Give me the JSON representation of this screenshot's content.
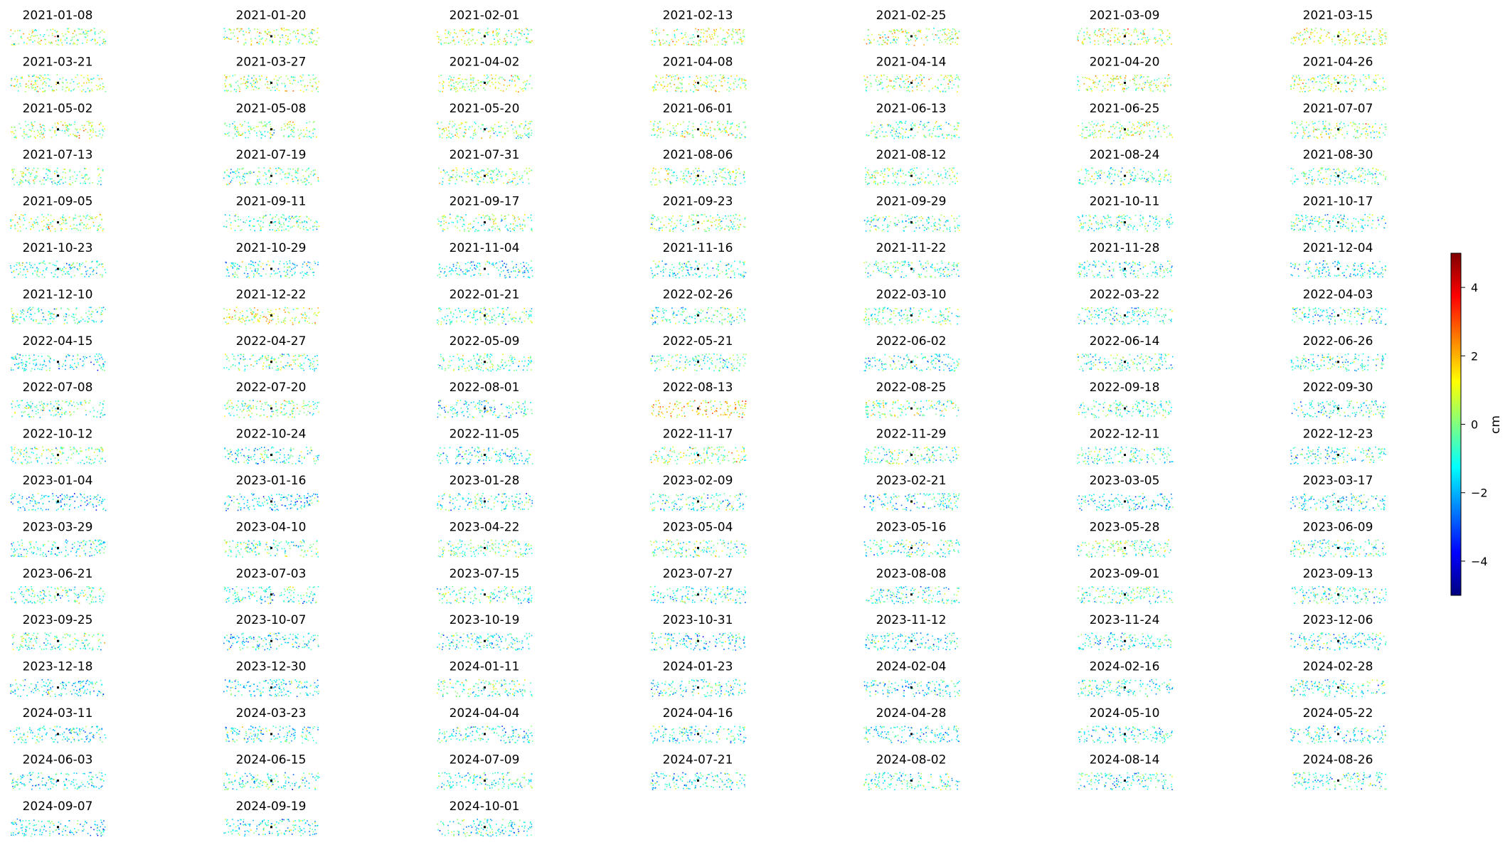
{
  "chart_data": {
    "type": "scatter",
    "description_of_panels": "small-multiples displacement maps, one per acquisition date",
    "dates": [
      "2021-01-08",
      "2021-01-20",
      "2021-02-01",
      "2021-02-13",
      "2021-02-25",
      "2021-03-09",
      "2021-03-15",
      "2021-03-21",
      "2021-03-27",
      "2021-04-02",
      "2021-04-08",
      "2021-04-14",
      "2021-04-20",
      "2021-04-26",
      "2021-05-02",
      "2021-05-08",
      "2021-05-20",
      "2021-06-01",
      "2021-06-13",
      "2021-06-25",
      "2021-07-07",
      "2021-07-13",
      "2021-07-19",
      "2021-07-31",
      "2021-08-06",
      "2021-08-12",
      "2021-08-24",
      "2021-08-30",
      "2021-09-05",
      "2021-09-11",
      "2021-09-17",
      "2021-09-23",
      "2021-09-29",
      "2021-10-11",
      "2021-10-17",
      "2021-10-23",
      "2021-10-29",
      "2021-11-04",
      "2021-11-16",
      "2021-11-22",
      "2021-11-28",
      "2021-12-04",
      "2021-12-10",
      "2021-12-22",
      "2022-01-21",
      "2022-02-26",
      "2022-03-10",
      "2022-03-22",
      "2022-04-03",
      "2022-04-15",
      "2022-04-27",
      "2022-05-09",
      "2022-05-21",
      "2022-06-02",
      "2022-06-14",
      "2022-06-26",
      "2022-07-08",
      "2022-07-20",
      "2022-08-01",
      "2022-08-13",
      "2022-08-25",
      "2022-09-18",
      "2022-09-30",
      "2022-10-12",
      "2022-10-24",
      "2022-11-05",
      "2022-11-17",
      "2022-11-29",
      "2022-12-11",
      "2022-12-23",
      "2023-01-04",
      "2023-01-16",
      "2023-01-28",
      "2023-02-09",
      "2023-02-21",
      "2023-03-05",
      "2023-03-17",
      "2023-03-29",
      "2023-04-10",
      "2023-04-22",
      "2023-05-04",
      "2023-05-16",
      "2023-05-28",
      "2023-06-09",
      "2023-06-21",
      "2023-07-03",
      "2023-07-15",
      "2023-07-27",
      "2023-08-08",
      "2023-09-01",
      "2023-09-13",
      "2023-09-25",
      "2023-10-07",
      "2023-10-19",
      "2023-10-31",
      "2023-11-12",
      "2023-11-24",
      "2023-12-06",
      "2023-12-18",
      "2023-12-30",
      "2024-01-11",
      "2024-01-23",
      "2024-02-04",
      "2024-02-16",
      "2024-02-28",
      "2024-03-11",
      "2024-03-23",
      "2024-04-04",
      "2024-04-16",
      "2024-04-28",
      "2024-05-10",
      "2024-05-22",
      "2024-06-03",
      "2024-06-15",
      "2024-07-09",
      "2024-07-21",
      "2024-08-02",
      "2024-08-14",
      "2024-08-26",
      "2024-09-07",
      "2024-09-19",
      "2024-10-01"
    ],
    "panel_mean_cm": [
      0.3,
      0.5,
      0.4,
      0.6,
      0.5,
      0.7,
      0.9,
      0.4,
      0.3,
      0.5,
      0.4,
      0.3,
      0.6,
      0.2,
      0.5,
      0.0,
      0.1,
      0.2,
      -0.3,
      0.4,
      0.1,
      -0.2,
      -0.4,
      -0.1,
      -0.3,
      -0.2,
      -0.6,
      -0.5,
      0.4,
      -0.5,
      -0.2,
      -0.1,
      -0.6,
      -0.8,
      -0.9,
      -0.8,
      -1.0,
      -1.4,
      -1.1,
      -0.7,
      -1.0,
      -1.2,
      -0.7,
      0.9,
      -0.6,
      -0.8,
      -0.4,
      -1.0,
      -1.1,
      -1.2,
      -0.3,
      -0.5,
      -0.6,
      -1.0,
      -0.7,
      -0.9,
      -0.5,
      -0.2,
      -1.1,
      1.4,
      -0.4,
      -0.6,
      -0.8,
      -0.3,
      -0.9,
      -1.2,
      0.1,
      -0.5,
      -0.8,
      -1.0,
      -1.6,
      -1.5,
      -1.0,
      -0.9,
      -1.1,
      -1.3,
      -1.2,
      -0.9,
      -0.4,
      -0.6,
      -0.5,
      -0.7,
      -0.3,
      -0.8,
      -0.6,
      -0.9,
      -0.7,
      -1.0,
      -0.8,
      -0.5,
      -0.9,
      -0.4,
      -1.2,
      -1.3,
      -1.4,
      -1.3,
      -1.2,
      -1.1,
      -1.2,
      -1.3,
      -0.6,
      -1.0,
      -1.2,
      -1.1,
      -1.0,
      -1.1,
      -1.0,
      -1.2,
      -1.1,
      -1.3,
      -1.2,
      -1.1,
      -1.2,
      -0.9,
      -1.0,
      -1.3,
      -0.8,
      -1.1,
      -1.0,
      -1.3,
      -0.9,
      -1.2
    ],
    "grid": false,
    "colorbar": {
      "label": "cm",
      "vmin": -5,
      "vmax": 5,
      "ticks": [
        4,
        2,
        0,
        -2,
        -4
      ],
      "tick_labels": [
        "4",
        "2",
        "0",
        "−2",
        "−4"
      ],
      "colormap": "jet",
      "colors": [
        "#00007f",
        "#0000ff",
        "#007fff",
        "#00ffff",
        "#7fff7f",
        "#ffff00",
        "#ff7f00",
        "#ff0000",
        "#7f0000"
      ]
    }
  }
}
